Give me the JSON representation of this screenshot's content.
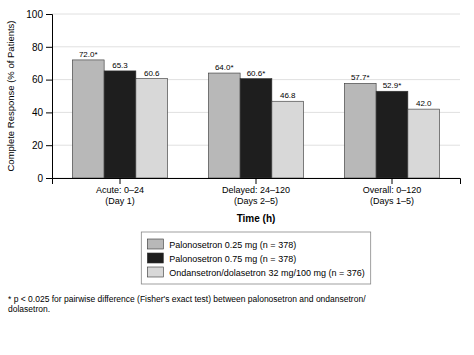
{
  "chart_data": {
    "type": "bar",
    "categories": [
      "Acute: 0–24\n(Day 1)",
      "Delayed: 24–120\n(Days 2–5)",
      "Overall: 0–120\n(Days 1–5)"
    ],
    "series": [
      {
        "name": "Palonosetron 0.25 mg (n = 378)",
        "color": "#b8b8b8",
        "values": [
          72.0,
          64.0,
          57.7
        ],
        "value_labels": [
          "72.0*",
          "64.0*",
          "57.7*"
        ]
      },
      {
        "name": "Palonosetron 0.75 mg (n = 378)",
        "color": "#1e1e1e",
        "values": [
          65.3,
          60.6,
          52.9
        ],
        "value_labels": [
          "65.3",
          "60.6*",
          "52.9*"
        ]
      },
      {
        "name": "Ondansetron/dolasetron 32 mg/100 mg (n = 376)",
        "color": "#d8d8d8",
        "values": [
          60.6,
          46.8,
          42.0
        ],
        "value_labels": [
          "60.6",
          "46.8",
          "42.0"
        ]
      }
    ],
    "xlabel": "Time (h)",
    "ylabel": "Complete Response (% of Patients)",
    "ylim": [
      0,
      100
    ],
    "yticks": [
      0,
      20,
      40,
      60,
      80,
      100
    ],
    "grid": true,
    "legend": "bottom",
    "data_labels": true,
    "annotations": [
      "* p < 0.025 for pairwise difference (Fisher's exact test) between palonosetron and ondansetron/\ndolasetron."
    ]
  }
}
